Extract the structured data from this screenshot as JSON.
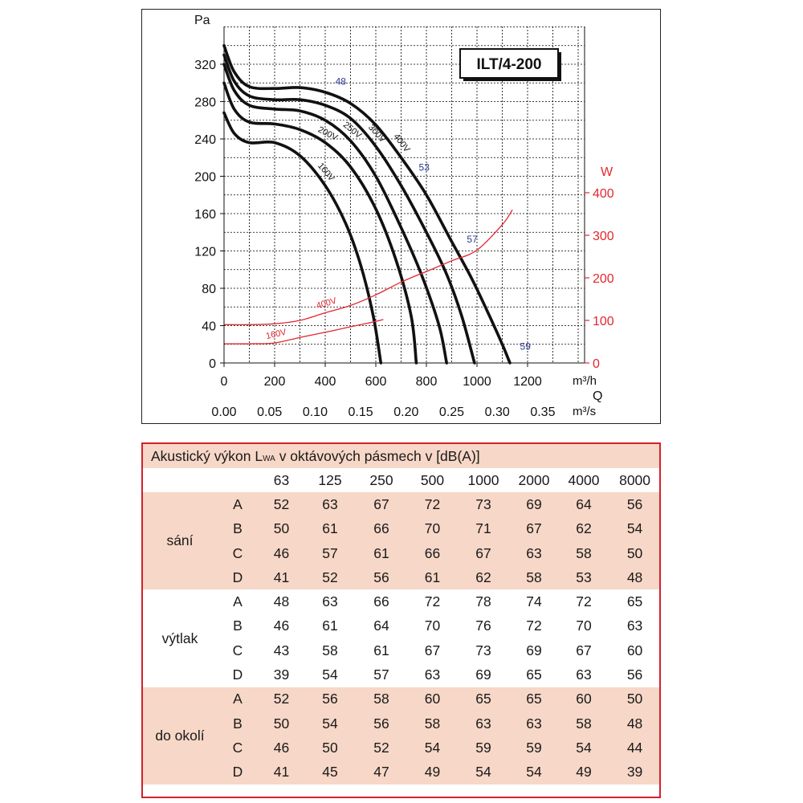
{
  "chart_data": {
    "type": "line",
    "title": "ILT/4-200",
    "ylabel": "Pa",
    "xlabel": "m³/h",
    "x2label_top": "Q",
    "x2label": "m³/s",
    "y2label": "W",
    "xlim": [
      0,
      1400
    ],
    "ylim": [
      0,
      360
    ],
    "y2lim": [
      0,
      480
    ],
    "grid": true,
    "x_ticks": [
      "0",
      "200",
      "400",
      "600",
      "800",
      "1000",
      "1200"
    ],
    "x_tick_values": [
      0,
      200,
      400,
      600,
      800,
      1000,
      1200
    ],
    "x2_ticks": [
      "0.00",
      "0.05",
      "0.10",
      "0.15",
      "0.20",
      "0.25",
      "0.30",
      "0.35"
    ],
    "x2_tick_values": [
      0,
      0.05,
      0.1,
      0.15,
      0.2,
      0.25,
      0.3,
      0.35
    ],
    "y_ticks": [
      "0",
      "40",
      "80",
      "120",
      "160",
      "200",
      "240",
      "280",
      "320"
    ],
    "y_tick_values": [
      0,
      40,
      80,
      120,
      160,
      200,
      240,
      280,
      320
    ],
    "y2_ticks": [
      "0",
      "100",
      "200",
      "300",
      "400"
    ],
    "y2_tick_values": [
      0,
      100,
      200,
      300,
      400
    ],
    "pressure_series": [
      {
        "name": "400V",
        "points": [
          [
            0,
            340
          ],
          [
            40,
            312
          ],
          [
            100,
            296
          ],
          [
            200,
            294
          ],
          [
            300,
            295
          ],
          [
            400,
            290
          ],
          [
            500,
            278
          ],
          [
            600,
            255
          ],
          [
            700,
            220
          ],
          [
            800,
            180
          ],
          [
            900,
            130
          ],
          [
            980,
            90
          ],
          [
            1050,
            50
          ],
          [
            1100,
            20
          ],
          [
            1130,
            0
          ]
        ]
      },
      {
        "name": "300V",
        "points": [
          [
            0,
            330
          ],
          [
            40,
            302
          ],
          [
            100,
            286
          ],
          [
            200,
            282
          ],
          [
            300,
            282
          ],
          [
            400,
            276
          ],
          [
            500,
            262
          ],
          [
            600,
            232
          ],
          [
            700,
            190
          ],
          [
            800,
            140
          ],
          [
            880,
            95
          ],
          [
            940,
            50
          ],
          [
            990,
            0
          ]
        ]
      },
      {
        "name": "250V",
        "points": [
          [
            0,
            320
          ],
          [
            40,
            292
          ],
          [
            100,
            276
          ],
          [
            200,
            272
          ],
          [
            300,
            270
          ],
          [
            400,
            260
          ],
          [
            500,
            238
          ],
          [
            600,
            200
          ],
          [
            700,
            145
          ],
          [
            780,
            95
          ],
          [
            850,
            40
          ],
          [
            880,
            0
          ]
        ]
      },
      {
        "name": "200V",
        "points": [
          [
            0,
            300
          ],
          [
            40,
            272
          ],
          [
            100,
            258
          ],
          [
            200,
            256
          ],
          [
            300,
            250
          ],
          [
            400,
            236
          ],
          [
            500,
            210
          ],
          [
            600,
            165
          ],
          [
            680,
            110
          ],
          [
            740,
            50
          ],
          [
            760,
            0
          ]
        ]
      },
      {
        "name": "160V",
        "points": [
          [
            0,
            268
          ],
          [
            40,
            246
          ],
          [
            100,
            236
          ],
          [
            200,
            236
          ],
          [
            300,
            222
          ],
          [
            400,
            190
          ],
          [
            480,
            150
          ],
          [
            540,
            105
          ],
          [
            590,
            50
          ],
          [
            620,
            0
          ]
        ]
      }
    ],
    "power_series": [
      {
        "name": "400V",
        "points": [
          [
            0,
            90
          ],
          [
            100,
            90
          ],
          [
            200,
            92
          ],
          [
            300,
            100
          ],
          [
            400,
            118
          ],
          [
            500,
            135
          ],
          [
            600,
            160
          ],
          [
            700,
            190
          ],
          [
            800,
            215
          ],
          [
            900,
            240
          ],
          [
            1000,
            265
          ],
          [
            1100,
            325
          ],
          [
            1140,
            360
          ]
        ]
      },
      {
        "name": "160V",
        "points": [
          [
            0,
            45
          ],
          [
            100,
            45
          ],
          [
            200,
            47
          ],
          [
            300,
            60
          ],
          [
            400,
            72
          ],
          [
            500,
            85
          ],
          [
            580,
            95
          ],
          [
            630,
            102
          ]
        ]
      }
    ],
    "efficiency_labels": [
      {
        "text": "48",
        "x": 440,
        "y": 298
      },
      {
        "text": "53",
        "x": 770,
        "y": 206
      },
      {
        "text": "57",
        "x": 960,
        "y": 129
      },
      {
        "text": "59",
        "x": 1170,
        "y": 14
      }
    ]
  },
  "colors": {
    "curve": "#111111",
    "power": "#e3272f",
    "efficiency_label": "#2b3a8f",
    "table_border": "#d3202c",
    "table_band": "#f7d7c7"
  },
  "table": {
    "title_prefix": "Akustický výkon L",
    "title_sub": "WA",
    "title_suffix": " v oktávových pásmech v [dB(A)]",
    "bands": [
      "63",
      "125",
      "250",
      "500",
      "1000",
      "2000",
      "4000",
      "8000"
    ],
    "groups": [
      {
        "label": "sání",
        "rows": [
          {
            "key": "A",
            "values": [
              "52",
              "63",
              "67",
              "72",
              "73",
              "69",
              "64",
              "56"
            ]
          },
          {
            "key": "B",
            "values": [
              "50",
              "61",
              "66",
              "70",
              "71",
              "67",
              "62",
              "54"
            ]
          },
          {
            "key": "C",
            "values": [
              "46",
              "57",
              "61",
              "66",
              "67",
              "63",
              "58",
              "50"
            ]
          },
          {
            "key": "D",
            "values": [
              "41",
              "52",
              "56",
              "61",
              "62",
              "58",
              "53",
              "48"
            ]
          }
        ]
      },
      {
        "label": "výtlak",
        "rows": [
          {
            "key": "A",
            "values": [
              "48",
              "63",
              "66",
              "72",
              "78",
              "74",
              "72",
              "65"
            ]
          },
          {
            "key": "B",
            "values": [
              "46",
              "61",
              "64",
              "70",
              "76",
              "72",
              "70",
              "63"
            ]
          },
          {
            "key": "C",
            "values": [
              "43",
              "58",
              "61",
              "67",
              "73",
              "69",
              "67",
              "60"
            ]
          },
          {
            "key": "D",
            "values": [
              "39",
              "54",
              "57",
              "63",
              "69",
              "65",
              "63",
              "56"
            ]
          }
        ]
      },
      {
        "label": "do okolí",
        "rows": [
          {
            "key": "A",
            "values": [
              "52",
              "56",
              "58",
              "60",
              "65",
              "65",
              "60",
              "50"
            ]
          },
          {
            "key": "B",
            "values": [
              "50",
              "54",
              "56",
              "58",
              "63",
              "63",
              "58",
              "48"
            ]
          },
          {
            "key": "C",
            "values": [
              "46",
              "50",
              "52",
              "54",
              "59",
              "59",
              "54",
              "44"
            ]
          },
          {
            "key": "D",
            "values": [
              "41",
              "45",
              "47",
              "49",
              "54",
              "54",
              "49",
              "39"
            ]
          }
        ]
      }
    ]
  }
}
